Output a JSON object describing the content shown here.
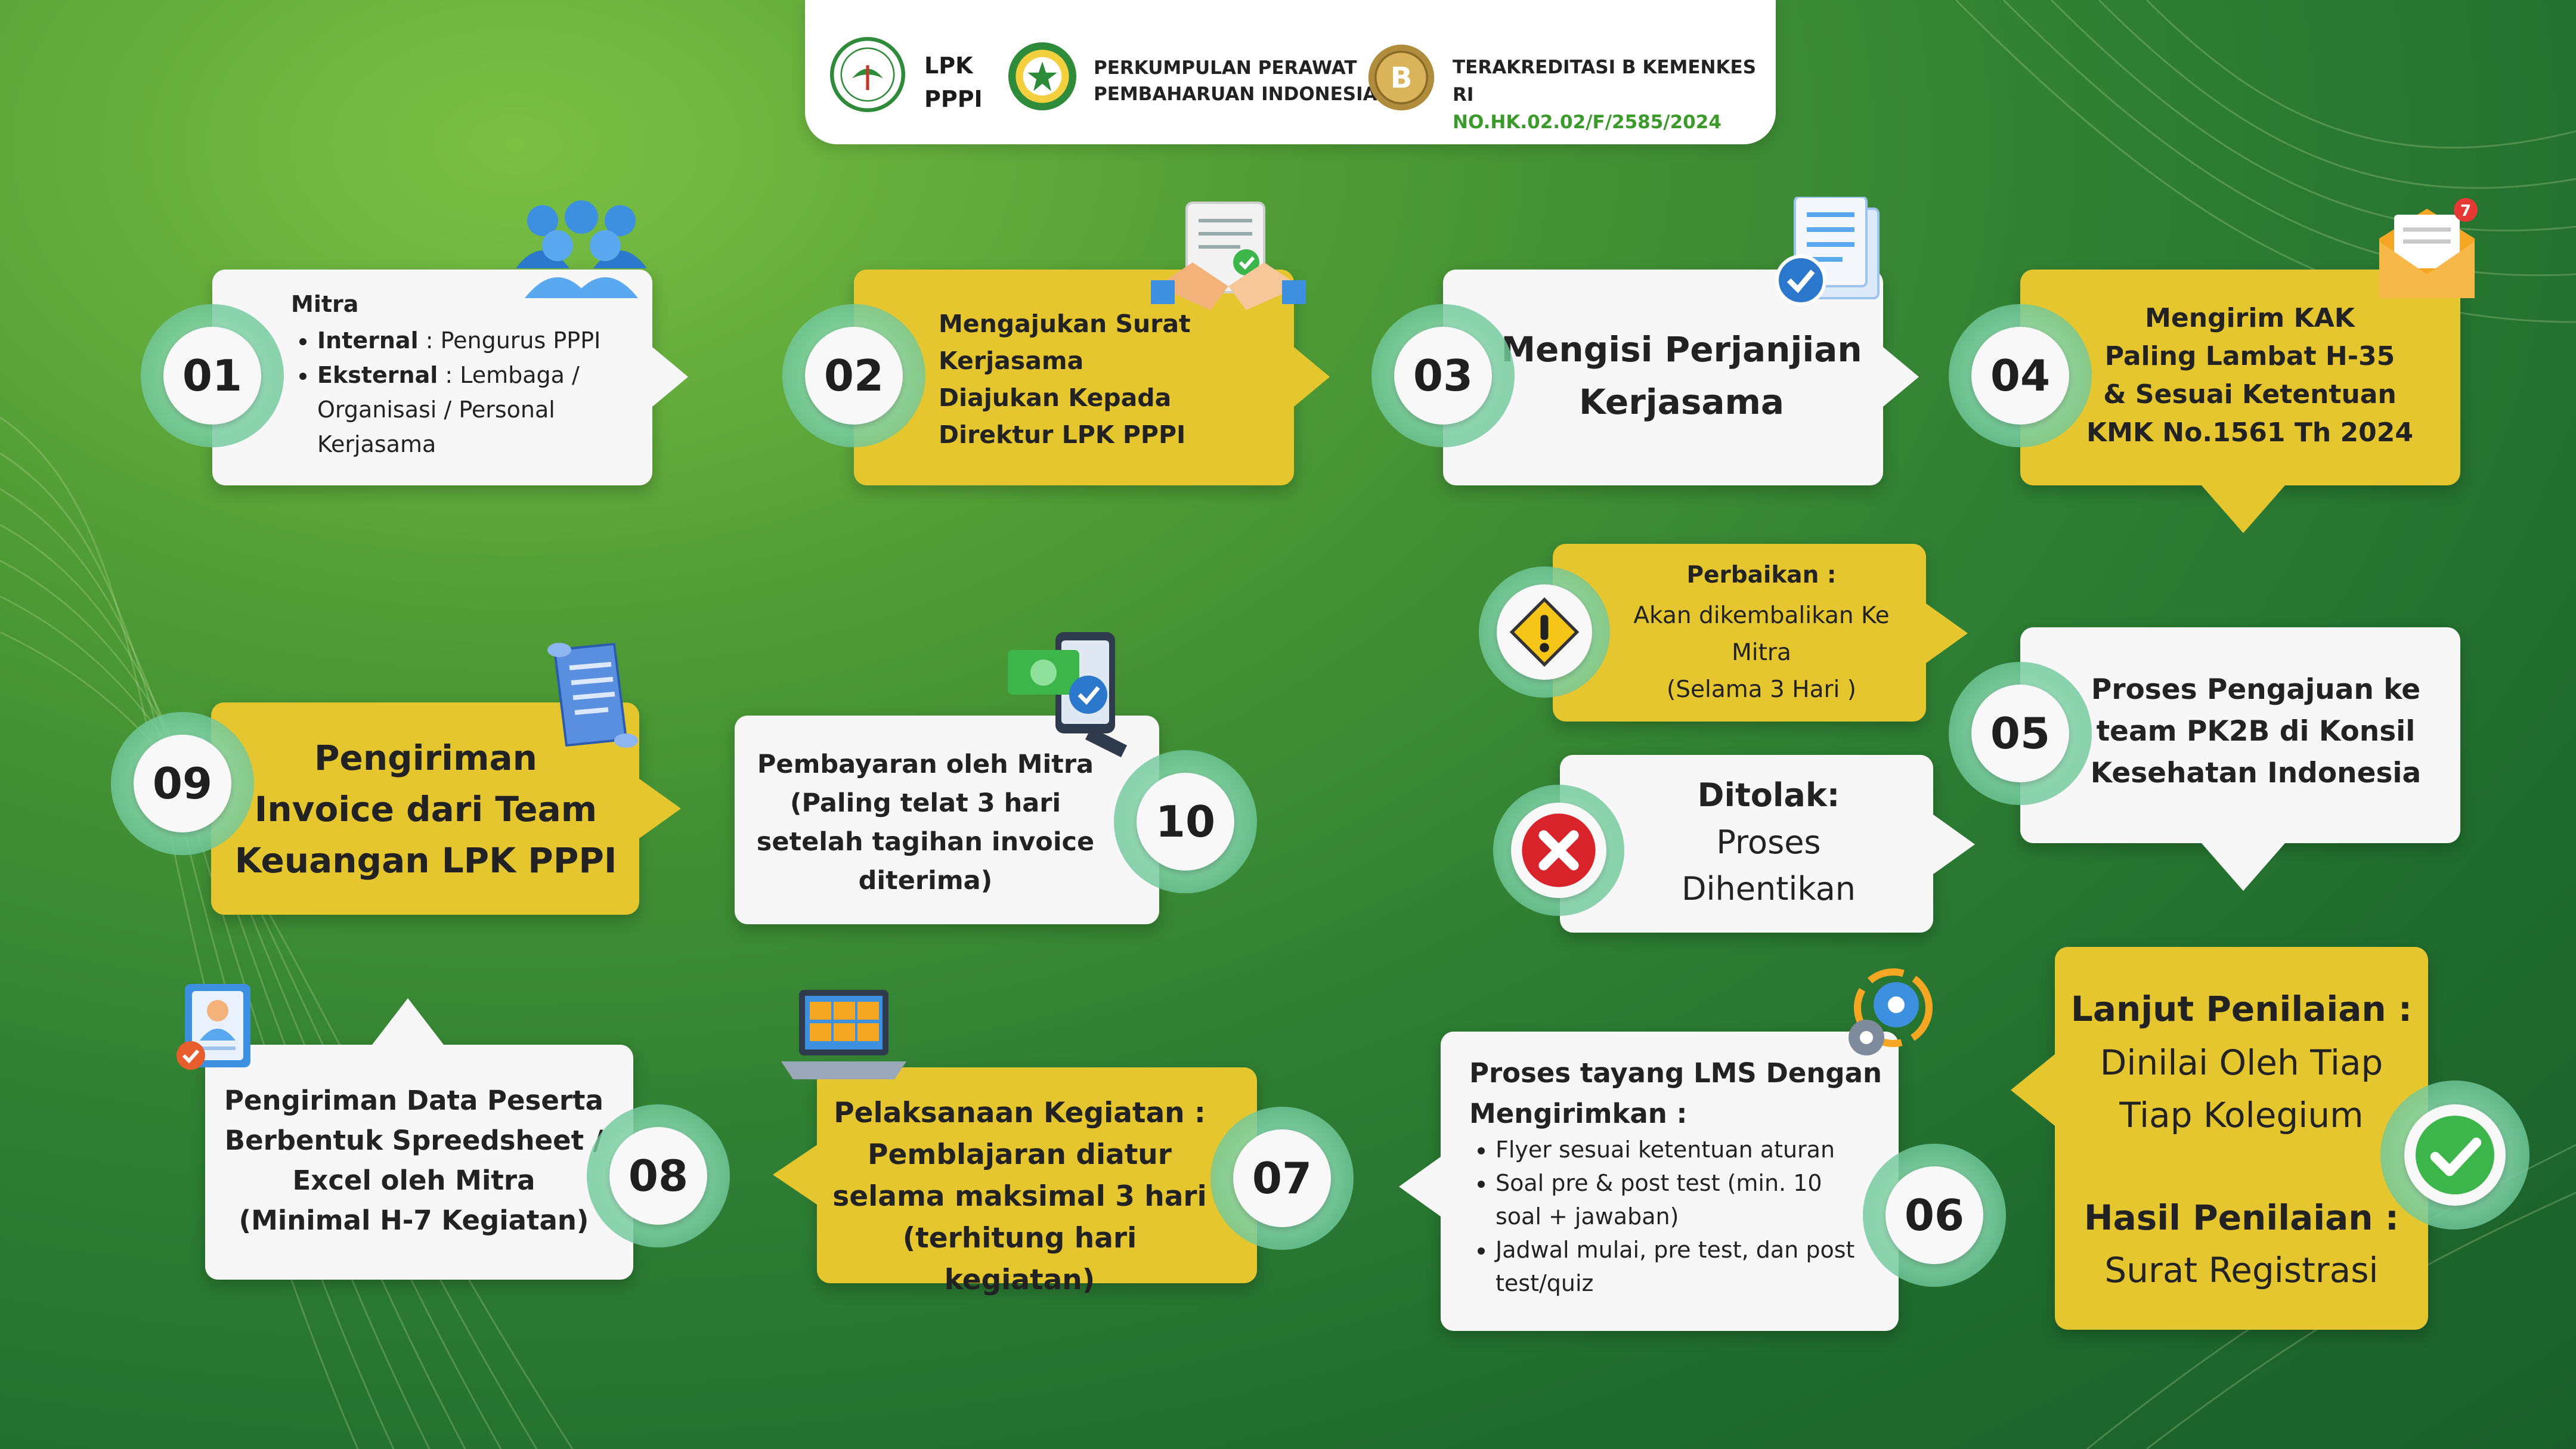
{
  "header": {
    "org1": [
      "LPK",
      "PPPI"
    ],
    "org2": [
      "PERKUMPULAN PERAWAT",
      "PEMBAHARUAN INDONESIA"
    ],
    "accreditation": [
      "TERAKREDITASI B KEMENKES RI",
      "NO.HK.02.02/F/2585/2024"
    ],
    "badge_letter": "B"
  },
  "steps": {
    "s01": {
      "num": "01",
      "title": "Mitra",
      "items": [
        {
          "label": "Internal",
          "text": ": Pengurus PPPI"
        },
        {
          "label": "Eksternal",
          "text": ": Lembaga / Organisasi / Personal Kerjasama"
        }
      ]
    },
    "s02": {
      "num": "02",
      "lines": [
        "Mengajukan Surat",
        "Kerjasama",
        "Diajukan Kepada",
        "Direktur LPK PPPI"
      ]
    },
    "s03": {
      "num": "03",
      "lines": [
        "Mengisi Perjanjian",
        "Kerjasama"
      ]
    },
    "s04": {
      "num": "04",
      "lines": [
        "Mengirim KAK",
        "Paling Lambat H-35",
        "& Sesuai Ketentuan",
        "KMK No.1561 Th 2024"
      ]
    },
    "s05": {
      "num": "05",
      "lines": [
        "Proses Pengajuan ke",
        "team PK2B di Konsil",
        "Kesehatan Indonesia"
      ]
    },
    "perbaikan": {
      "title": "Perbaikan :",
      "lines": [
        "Akan dikembalikan Ke",
        "Mitra",
        "(Selama 3 Hari )"
      ]
    },
    "ditolak": {
      "title": "Ditolak:",
      "lines": [
        "Proses",
        "Dihentikan"
      ]
    },
    "s06": {
      "num": "06",
      "title": [
        "Proses tayang LMS Dengan",
        "Mengirimkan :"
      ],
      "items": [
        "Flyer sesuai ketentuan aturan",
        "Soal pre & post test (min. 10 soal + jawaban)",
        "Jadwal mulai, pre test, dan post test/quiz"
      ]
    },
    "lanjut": {
      "title1": "Lanjut Penilaian :",
      "lines1": [
        "Dinilai Oleh Tiap",
        "Tiap Kolegium"
      ],
      "title2": "Hasil Penilaian :",
      "lines2": [
        "Surat Registrasi"
      ]
    },
    "s07": {
      "num": "07",
      "lines": [
        "Pelaksanaan Kegiatan :",
        "Pemblajaran diatur",
        "selama maksimal 3 hari",
        "(terhitung hari kegiatan)"
      ]
    },
    "s08": {
      "num": "08",
      "lines": [
        "Pengiriman Data Peserta",
        "Berbentuk  Spreedsheet /",
        "Excel oleh Mitra",
        "(Minimal H-7 Kegiatan)"
      ]
    },
    "s09": {
      "num": "09",
      "lines": [
        "Pengiriman",
        "Invoice dari Team",
        "Keuangan LPK PPPI"
      ]
    },
    "s10": {
      "num": "10",
      "lines": [
        "Pembayaran oleh Mitra",
        "(Paling telat 3 hari",
        "setelah tagihan invoice",
        "diterima)"
      ]
    }
  },
  "colors": {
    "yellow": "#e6c62e",
    "white": "#f7f7f7",
    "badge": "#8fd6b0",
    "green_bg": "#2f7f34",
    "header_green": "#3a8a2a",
    "reject": "#d8232a",
    "ok": "#3cb54a"
  },
  "icons": [
    "lpk-logo-icon",
    "ppni-logo-icon",
    "accreditation-seal-icon",
    "people-group-icon",
    "handshake-document-icon",
    "documents-check-icon",
    "mail-notification-icon",
    "warning-icon",
    "reject-x-icon",
    "scroll-invoice-icon",
    "phone-payment-icon",
    "id-card-icon",
    "laptop-meeting-icon",
    "gears-icon",
    "check-circle-icon"
  ]
}
